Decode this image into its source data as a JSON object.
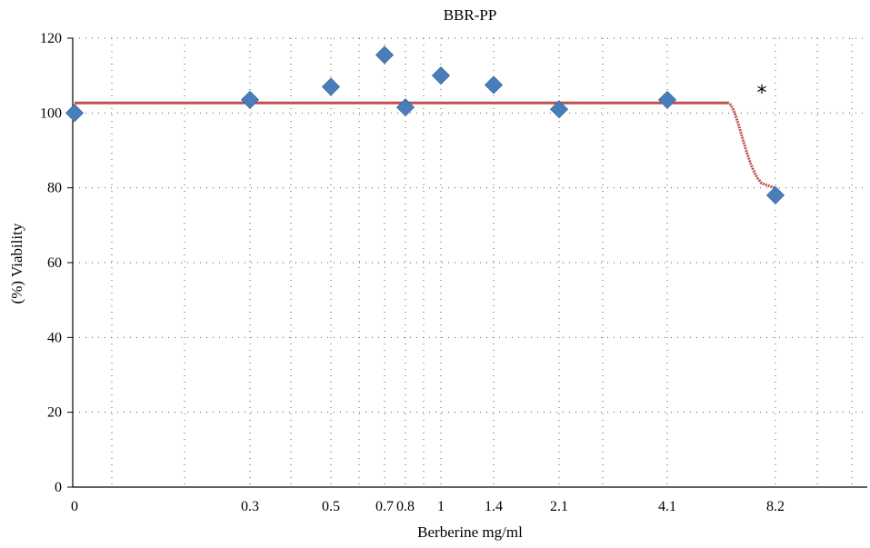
{
  "chart_data": {
    "type": "scatter",
    "title": "BBR-PP",
    "xlabel": "Berberine mg/ml",
    "ylabel": "(%) Viability",
    "ylim": [
      0,
      120
    ],
    "yticks": [
      "0",
      "20",
      "40",
      "60",
      "80",
      "100",
      "120"
    ],
    "xticks": [
      "0",
      "0.3",
      "0.5",
      "0.7",
      "0.8",
      "1",
      "1.4",
      "2.1",
      "4.1",
      "8.2"
    ],
    "grid": true,
    "series": [
      {
        "marker": "diamond",
        "color": "#4a7ebb",
        "points": [
          {
            "x": "0",
            "y": 100
          },
          {
            "x": "0.3",
            "y": 103.5
          },
          {
            "x": "0.5",
            "y": 107
          },
          {
            "x": "0.7",
            "y": 115.5
          },
          {
            "x": "0.8",
            "y": 101.5
          },
          {
            "x": "1",
            "y": 110
          },
          {
            "x": "1.4",
            "y": 107.5
          },
          {
            "x": "2.1",
            "y": 101
          },
          {
            "x": "4.1",
            "y": 103.5
          },
          {
            "x": "8.2",
            "y": 78
          }
        ]
      },
      {
        "type": "fit-curve",
        "color": "#c0504d",
        "plateau": 102.7,
        "end_value": 80
      }
    ],
    "annotations": [
      {
        "text": "*",
        "x": "8.2",
        "y": 106
      }
    ]
  }
}
